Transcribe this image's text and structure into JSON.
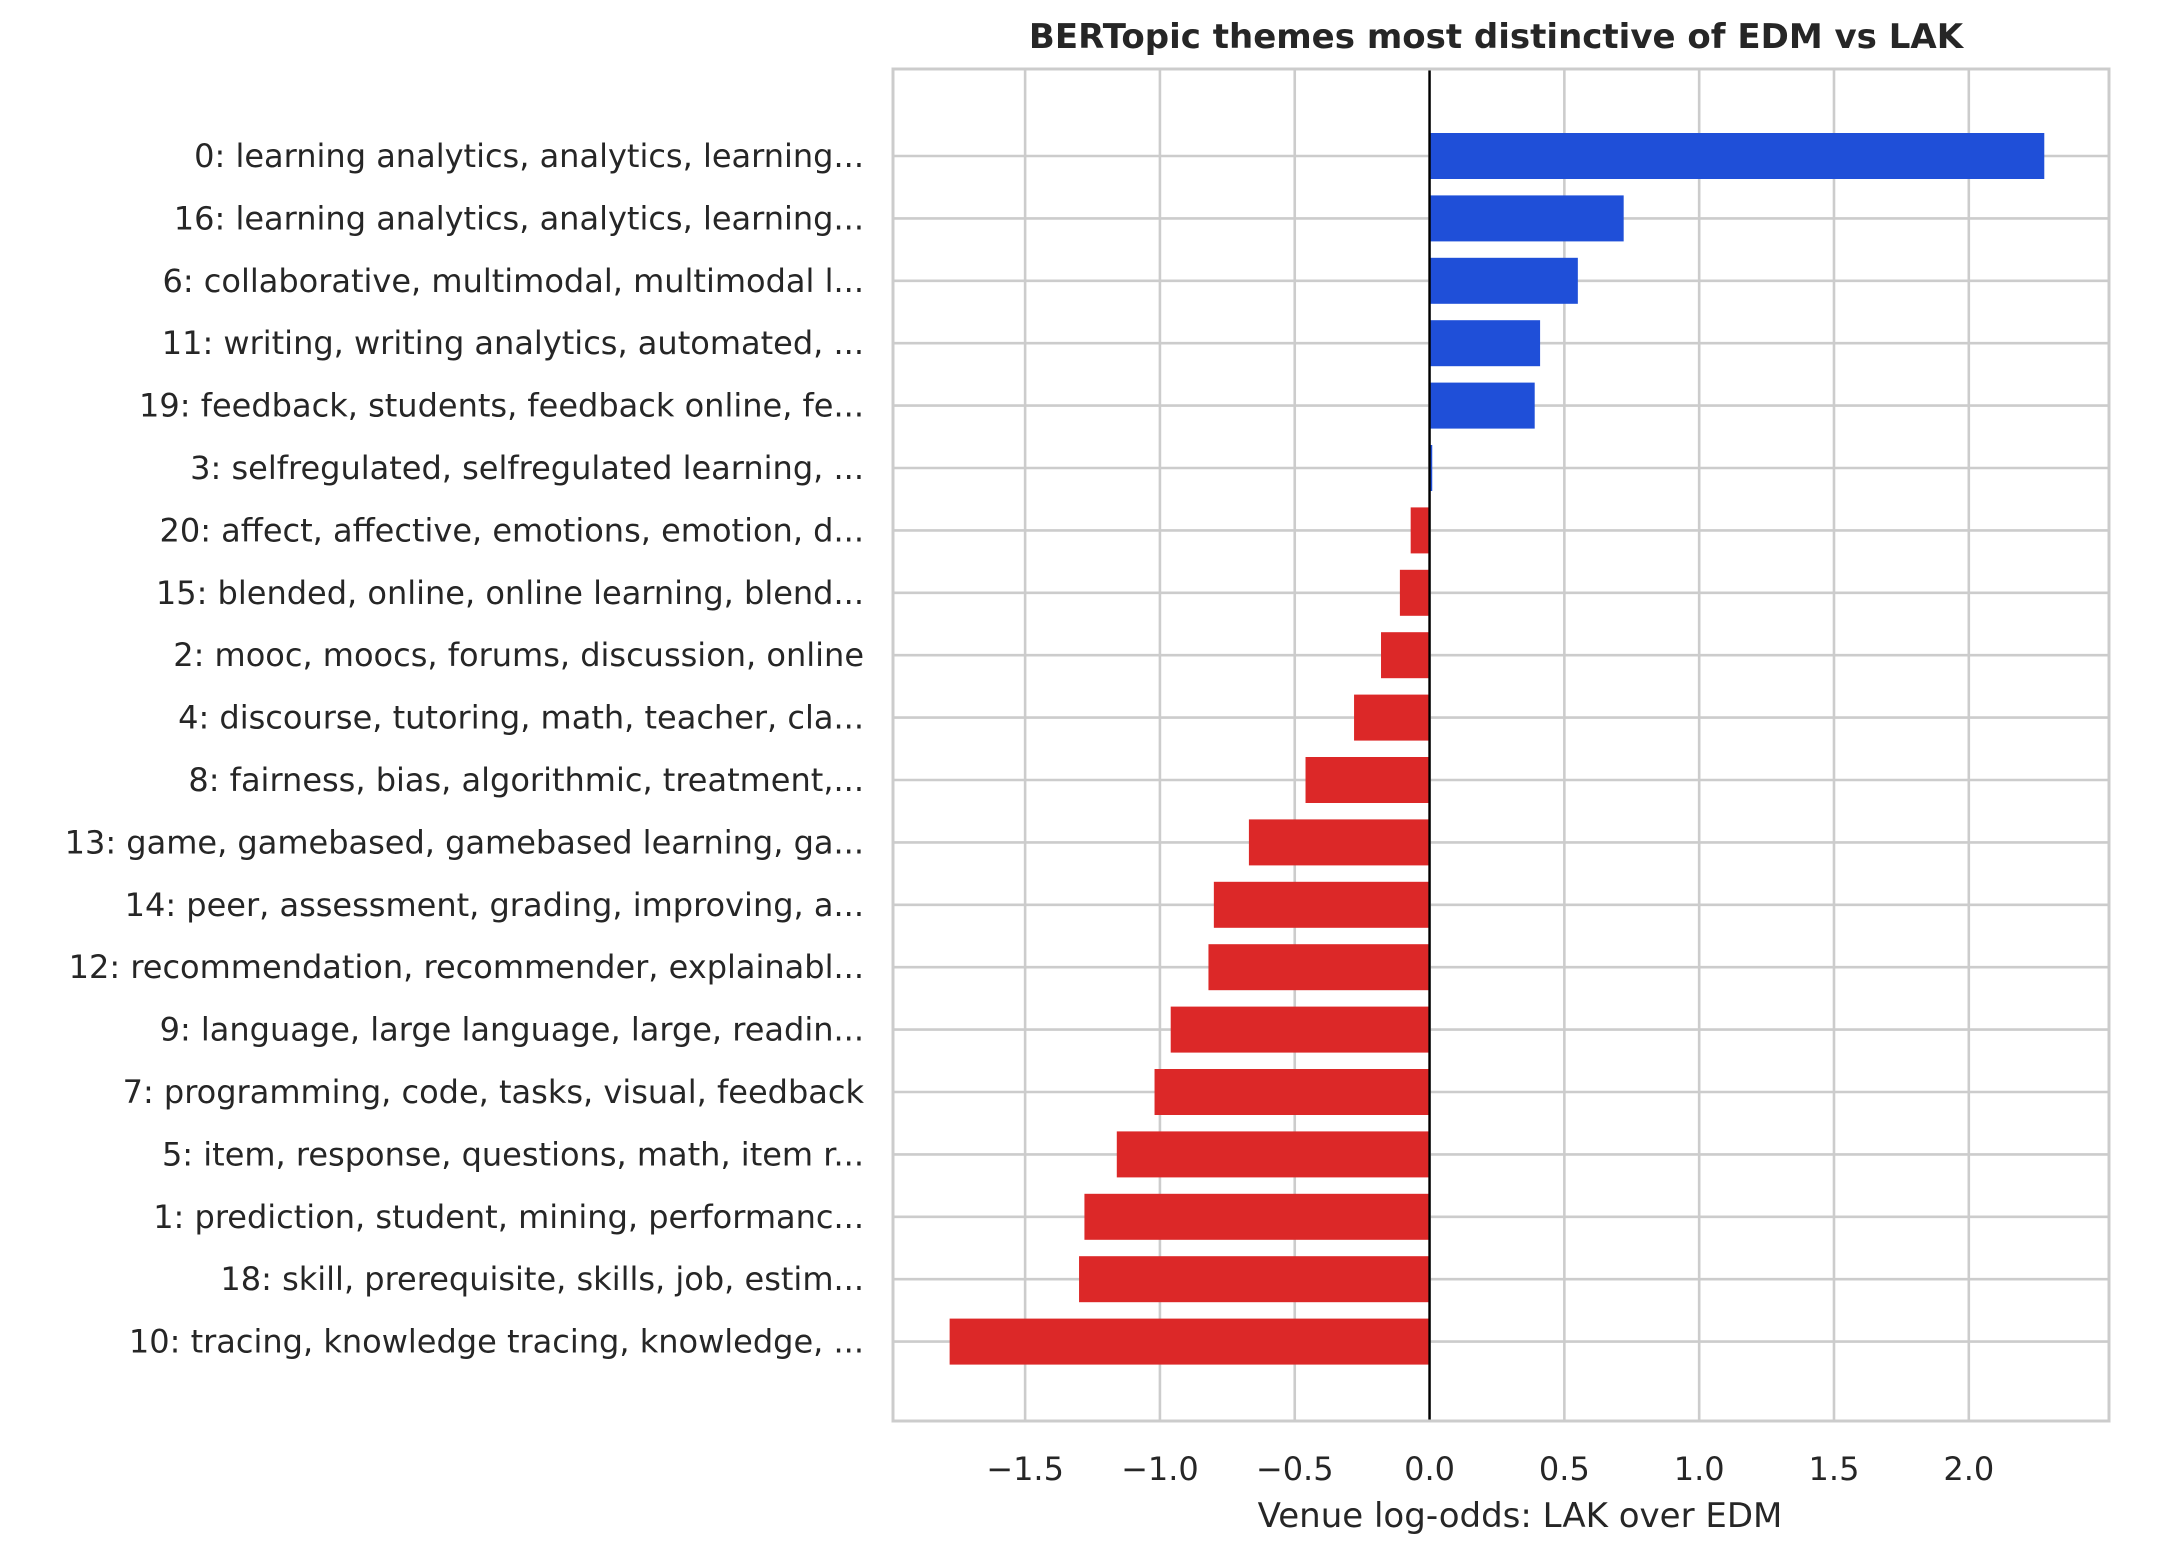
{
  "chart_data": {
    "type": "bar",
    "orientation": "horizontal",
    "title": "BERTopic themes most distinctive of EDM vs LAK",
    "xlabel": "Venue log-odds: LAK over EDM",
    "ylabel": "",
    "xlim": [
      -1.99,
      2.52
    ],
    "xticks": [
      -1.5,
      -1.0,
      -0.5,
      0.0,
      0.5,
      1.0,
      1.5,
      2.0
    ],
    "xtick_labels": [
      "−1.5",
      "−1.0",
      "−0.5",
      "0.0",
      "0.5",
      "1.0",
      "1.5",
      "2.0"
    ],
    "grid": true,
    "legend": "none",
    "colors": {
      "positive": "#1f4fd8",
      "negative": "#dc2828",
      "grid": "#cccccc",
      "zero_line": "#000000",
      "text": "#262626"
    },
    "categories": [
      "0: learning analytics, analytics, learning...",
      "16: learning analytics, analytics, learning...",
      "6: collaborative, multimodal, multimodal l...",
      "11: writing, writing analytics, automated, ...",
      "19: feedback, students, feedback online, fe...",
      "3: selfregulated, selfregulated learning, ...",
      "20: affect, affective, emotions, emotion, d...",
      "15: blended, online, online learning, blend...",
      "2: mooc, moocs, forums, discussion, online",
      "4: discourse, tutoring, math, teacher, cla...",
      "8: fairness, bias, algorithmic, treatment,...",
      "13: game, gamebased, gamebased learning, ga...",
      "14: peer, assessment, grading, improving, a...",
      "12: recommendation, recommender, explainabl...",
      "9: language, large language, large, readin...",
      "7: programming, code, tasks, visual, feedback",
      "5: item, response, questions, math, item r...",
      "1: prediction, student, mining, performanc...",
      "18: skill, prerequisite, skills, job, estim...",
      "10: tracing, knowledge tracing, knowledge, ..."
    ],
    "values": [
      2.28,
      0.72,
      0.55,
      0.41,
      0.39,
      0.01,
      -0.07,
      -0.11,
      -0.18,
      -0.28,
      -0.46,
      -0.67,
      -0.8,
      -0.82,
      -0.96,
      -1.02,
      -1.16,
      -1.28,
      -1.3,
      -1.78
    ]
  }
}
